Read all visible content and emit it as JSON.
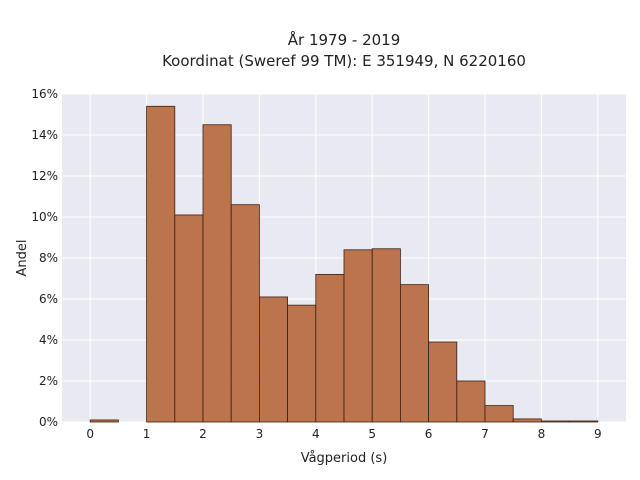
{
  "chart_data": {
    "type": "bar",
    "title": "År 1979 - 2019",
    "subtitle": "Koordinat (Sweref 99 TM): E 351949, N 6220160",
    "xlabel": "Vågperiod (s)",
    "ylabel": "Andel",
    "xlim": [
      -0.5,
      9.5
    ],
    "ylim": [
      0,
      0.16
    ],
    "bin_width": 0.5,
    "x_ticks": [
      0,
      1,
      2,
      3,
      4,
      5,
      6,
      7,
      8,
      9
    ],
    "x_tick_labels": [
      "0",
      "1",
      "2",
      "3",
      "4",
      "5",
      "6",
      "7",
      "8",
      "9"
    ],
    "y_ticks": [
      0,
      0.02,
      0.04,
      0.06,
      0.08,
      0.1,
      0.12,
      0.14,
      0.16
    ],
    "y_tick_labels": [
      "0%",
      "2%",
      "4%",
      "6%",
      "8%",
      "10%",
      "12%",
      "14%",
      "16%"
    ],
    "bin_starts": [
      0.0,
      0.5,
      1.0,
      1.5,
      2.0,
      2.5,
      3.0,
      3.5,
      4.0,
      4.5,
      5.0,
      5.5,
      6.0,
      6.5,
      7.0,
      7.5,
      8.0,
      8.5
    ],
    "values": [
      0.001,
      0.0,
      0.154,
      0.101,
      0.145,
      0.106,
      0.061,
      0.057,
      0.072,
      0.084,
      0.0845,
      0.067,
      0.039,
      0.02,
      0.008,
      0.0015,
      0.0005,
      0.0005
    ],
    "grid": true,
    "colors": {
      "bar_fill": "#b7693f",
      "bar_stroke": "#3a2015",
      "plot_background": "#e9e9f1",
      "grid": "#ffffff"
    }
  }
}
